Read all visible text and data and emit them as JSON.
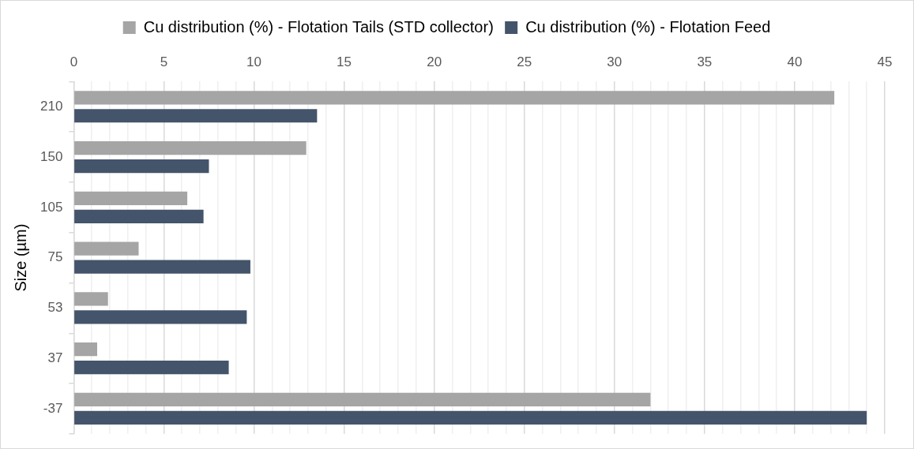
{
  "chart_data": {
    "type": "bar",
    "orientation": "horizontal",
    "ylabel": "Size (µm)",
    "categories": [
      "210",
      "150",
      "105",
      "75",
      "53",
      "37",
      "-37"
    ],
    "series": [
      {
        "name": "Cu distribution (%) - Flotation Tails (STD collector)",
        "color": "#a5a5a5",
        "values": [
          42.2,
          12.9,
          6.3,
          3.6,
          1.9,
          1.3,
          32.0
        ]
      },
      {
        "name": "Cu distribution (%) - Flotation Feed",
        "color": "#44546a",
        "values": [
          13.5,
          7.5,
          7.2,
          9.8,
          9.6,
          8.6,
          44.0
        ]
      }
    ],
    "xlim": [
      0,
      45
    ],
    "xticks": [
      0,
      {
        "value": 1,
        "label": null
      },
      {
        "value": 2,
        "label": null
      },
      {
        "value": 3,
        "label": null
      },
      {
        "value": 4,
        "label": null
      },
      5,
      {
        "value": 6,
        "label": null
      },
      {
        "value": 7,
        "label": null
      },
      {
        "value": 8,
        "label": null
      },
      {
        "value": 9,
        "label": null
      },
      10,
      {
        "value": 11,
        "label": null
      },
      {
        "value": 12,
        "label": null
      },
      {
        "value": 13,
        "label": null
      },
      {
        "value": 14,
        "label": null
      },
      15,
      {
        "value": 16,
        "label": null
      },
      {
        "value": 17,
        "label": null
      },
      {
        "value": 18,
        "label": null
      },
      {
        "value": 19,
        "label": null
      },
      20,
      {
        "value": 21,
        "label": null
      },
      {
        "value": 22,
        "label": null
      },
      {
        "value": 23,
        "label": null
      },
      {
        "value": 24,
        "label": null
      },
      25,
      {
        "value": 26,
        "label": null
      },
      {
        "value": 27,
        "label": null
      },
      {
        "value": 28,
        "label": null
      },
      {
        "value": 29,
        "label": null
      },
      30,
      {
        "value": 31,
        "label": null
      },
      {
        "value": 32,
        "label": null
      },
      {
        "value": 33,
        "label": null
      },
      {
        "value": 34,
        "label": null
      },
      35,
      {
        "value": 36,
        "label": null
      },
      {
        "value": 37,
        "label": null
      },
      {
        "value": 38,
        "label": null
      },
      {
        "value": 39,
        "label": null
      },
      40,
      {
        "value": 41,
        "label": null
      },
      {
        "value": 42,
        "label": null
      },
      {
        "value": 43,
        "label": null
      },
      {
        "value": 44,
        "label": null
      },
      45
    ],
    "grid": "x",
    "legend": "top"
  }
}
